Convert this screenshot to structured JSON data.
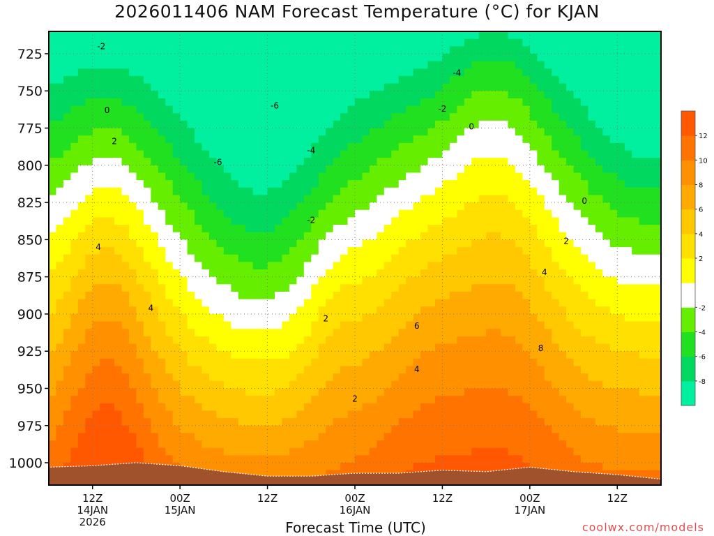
{
  "chart_data": {
    "type": "heatmap",
    "title": "2026011406 NAM Forecast Temperature (°C) for KJAN",
    "xlabel": "Forecast Time (UTC)",
    "ylabel": "",
    "credit": "coolwx.com/models",
    "y_axis": {
      "unit": "hPa",
      "ylim": [
        1015,
        710
      ],
      "ticks": [
        725,
        750,
        775,
        800,
        825,
        850,
        875,
        900,
        925,
        950,
        975,
        1000
      ]
    },
    "x_axis": {
      "unit": "hours from 2026011406",
      "xlim": [
        0,
        84
      ],
      "ticks": [
        {
          "hour": 6,
          "lines": [
            "12Z",
            "14JAN",
            "2026"
          ]
        },
        {
          "hour": 18,
          "lines": [
            "00Z",
            "15JAN"
          ]
        },
        {
          "hour": 30,
          "lines": [
            "12Z"
          ]
        },
        {
          "hour": 42,
          "lines": [
            "00Z",
            "16JAN"
          ]
        },
        {
          "hour": 54,
          "lines": [
            "12Z"
          ]
        },
        {
          "hour": 66,
          "lines": [
            "00Z",
            "17JAN"
          ]
        },
        {
          "hour": 78,
          "lines": [
            "12Z"
          ]
        }
      ]
    },
    "colorbar": {
      "levels": [
        -10,
        -8,
        -6,
        -4,
        -2,
        0,
        2,
        4,
        6,
        8,
        10,
        12,
        14
      ],
      "labels": [
        -8,
        -6,
        -4,
        -2,
        2,
        4,
        6,
        8,
        10,
        12
      ],
      "colors": [
        "#00f0a0",
        "#00d860",
        "#20e020",
        "#66ee00",
        "#ffffff",
        "#ffff00",
        "#ffe000",
        "#ffc800",
        "#ffaa00",
        "#ff9000",
        "#ff7400",
        "#ff5800"
      ]
    },
    "grid": true,
    "terrain_color": "#a0522d",
    "surface_pressure": [
      [
        0,
        1003
      ],
      [
        6,
        1002
      ],
      [
        12,
        1000
      ],
      [
        18,
        1002
      ],
      [
        24,
        1006
      ],
      [
        30,
        1009
      ],
      [
        36,
        1009
      ],
      [
        42,
        1007
      ],
      [
        48,
        1007
      ],
      [
        54,
        1005
      ],
      [
        60,
        1006
      ],
      [
        66,
        1003
      ],
      [
        72,
        1006
      ],
      [
        78,
        1008
      ],
      [
        84,
        1011
      ]
    ],
    "contour_labels": [
      {
        "text": "-2",
        "hour": 7.2,
        "p": 720
      },
      {
        "text": "0",
        "hour": 8.0,
        "p": 763
      },
      {
        "text": "2",
        "hour": 9.0,
        "p": 784
      },
      {
        "text": "4",
        "hour": 6.8,
        "p": 855
      },
      {
        "text": "4",
        "hour": 14.0,
        "p": 896
      },
      {
        "text": "-6",
        "hour": 23.2,
        "p": 798
      },
      {
        "text": "-6",
        "hour": 31.0,
        "p": 760
      },
      {
        "text": "-4",
        "hour": 36.0,
        "p": 790
      },
      {
        "text": "-2",
        "hour": 36.0,
        "p": 837
      },
      {
        "text": "2",
        "hour": 38.0,
        "p": 903
      },
      {
        "text": "2",
        "hour": 42.0,
        "p": 957
      },
      {
        "text": "-4",
        "hour": 56.0,
        "p": 738
      },
      {
        "text": "-2",
        "hour": 54.0,
        "p": 762
      },
      {
        "text": "0",
        "hour": 58.0,
        "p": 774
      },
      {
        "text": "0",
        "hour": 73.5,
        "p": 824
      },
      {
        "text": "2",
        "hour": 71.0,
        "p": 851
      },
      {
        "text": "4",
        "hour": 68.0,
        "p": 872
      },
      {
        "text": "6",
        "hour": 50.5,
        "p": 908
      },
      {
        "text": "4",
        "hour": 50.5,
        "p": 937
      },
      {
        "text": "8",
        "hour": 67.5,
        "p": 923
      }
    ]
  }
}
